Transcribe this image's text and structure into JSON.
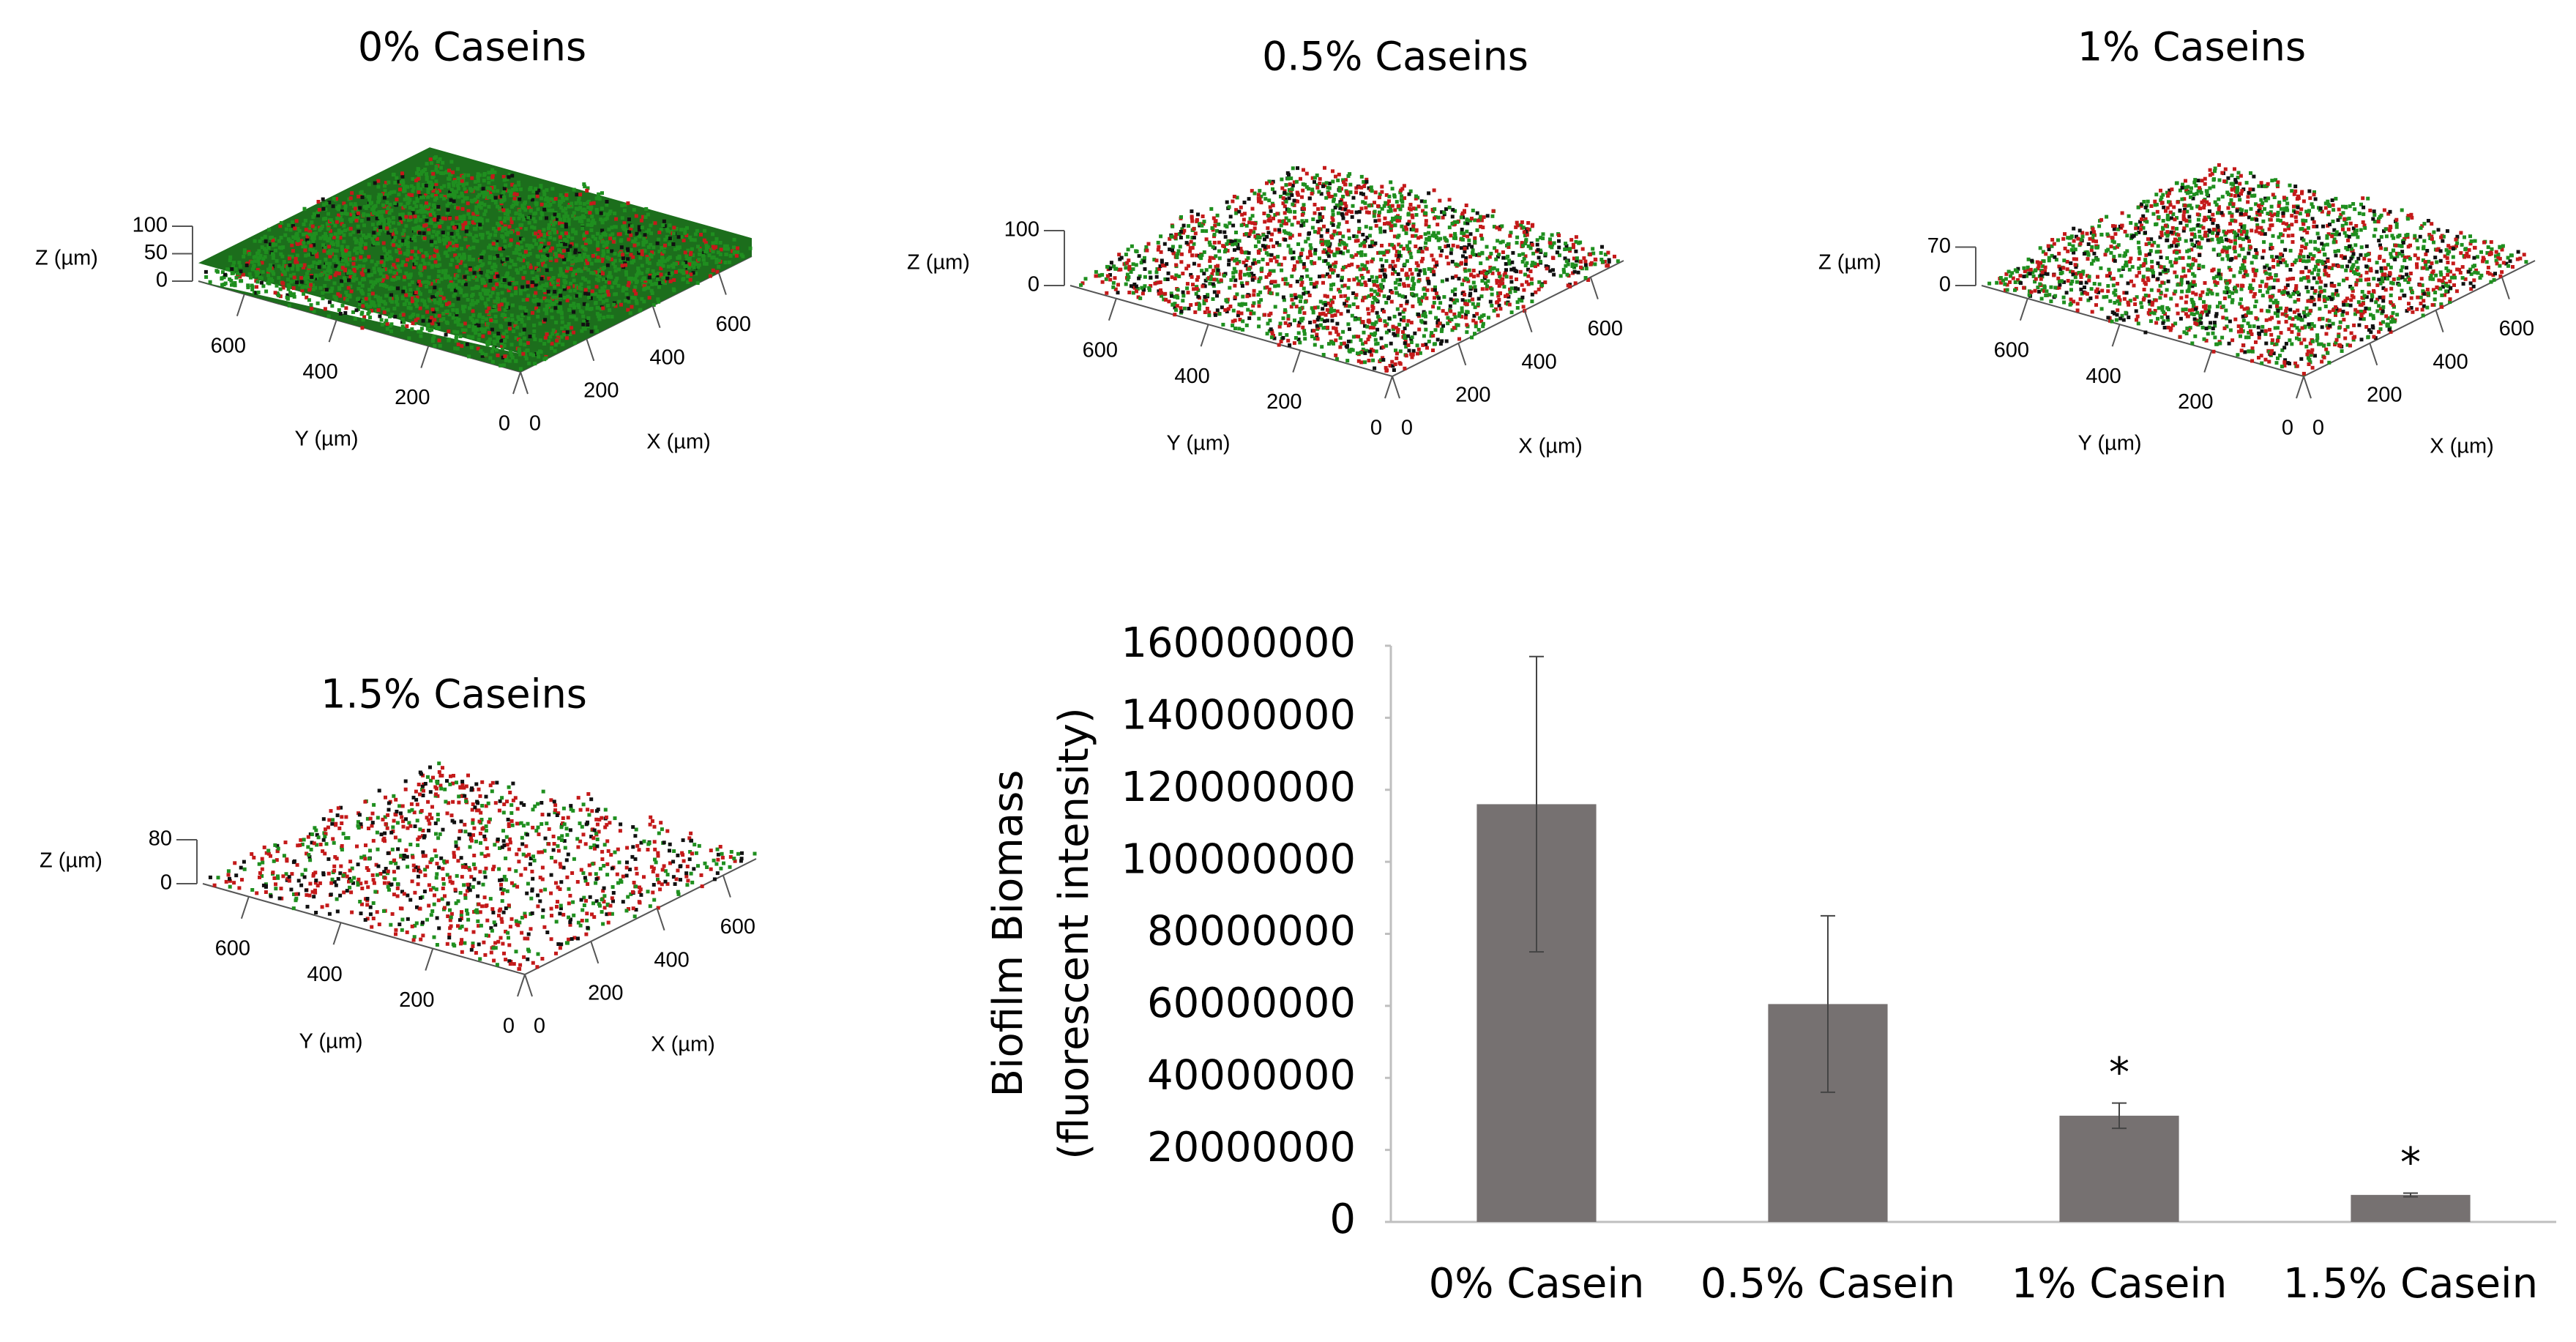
{
  "chart_data": [
    {
      "type": "surface3d",
      "title": "0% Caseins",
      "xlabel": "X (µm)",
      "ylabel": "Y (µm)",
      "zlabel": "Z (µm)",
      "xlim": [
        0,
        700
      ],
      "ylim": [
        0,
        700
      ],
      "zlim": [
        0,
        100
      ],
      "xticks": [
        0,
        200,
        400,
        600
      ],
      "yticks": [
        0,
        200,
        400,
        600
      ],
      "zticks": [
        0,
        50,
        100
      ],
      "colors": [
        "#1f8f1f",
        "#c41a1a",
        "#111111"
      ]
    },
    {
      "type": "surface3d",
      "title": "0.5% Caseins",
      "xlabel": "X (µm)",
      "ylabel": "Y (µm)",
      "zlabel": "Z (µm)",
      "xlim": [
        0,
        700
      ],
      "ylim": [
        0,
        700
      ],
      "zlim": [
        0,
        100
      ],
      "xticks": [
        0,
        200,
        400,
        600
      ],
      "yticks": [
        0,
        200,
        400,
        600
      ],
      "zticks": [
        0,
        100
      ],
      "colors": [
        "#1f8f1f",
        "#c41a1a",
        "#111111"
      ]
    },
    {
      "type": "surface3d",
      "title": "1% Caseins",
      "xlabel": "X (µm)",
      "ylabel": "Y (µm)",
      "zlabel": "Z (µm)",
      "xlim": [
        0,
        700
      ],
      "ylim": [
        0,
        700
      ],
      "zlim": [
        0,
        70
      ],
      "xticks": [
        0,
        200,
        400,
        600
      ],
      "yticks": [
        0,
        200,
        400,
        600
      ],
      "zticks": [
        0,
        70
      ],
      "colors": [
        "#1f8f1f",
        "#c41a1a",
        "#111111"
      ]
    },
    {
      "type": "surface3d",
      "title": "1.5% Caseins",
      "xlabel": "X (µm)",
      "ylabel": "Y (µm)",
      "zlabel": "Z (µm)",
      "xlim": [
        0,
        700
      ],
      "ylim": [
        0,
        700
      ],
      "zlim": [
        0,
        80
      ],
      "xticks": [
        0,
        200,
        400,
        600
      ],
      "yticks": [
        0,
        200,
        400,
        600
      ],
      "zticks": [
        0,
        80
      ],
      "colors": [
        "#1f8f1f",
        "#c41a1a",
        "#111111"
      ]
    },
    {
      "type": "bar",
      "ylabel": [
        "Biofilm Biomass",
        "(fluorescent intensity)"
      ],
      "categories": [
        "0% Casein",
        "0.5% Casein",
        "1% Casein",
        "1.5% Casein"
      ],
      "values": [
        116000000,
        60500000,
        29500000,
        7500000
      ],
      "errors": [
        41000000,
        24500000,
        3500000,
        500000
      ],
      "significance": [
        null,
        null,
        "*",
        "*"
      ],
      "color": "#767171",
      "ylim": [
        0,
        160000000
      ],
      "yticks": [
        0,
        20000000,
        40000000,
        60000000,
        80000000,
        100000000,
        120000000,
        140000000,
        160000000
      ]
    }
  ]
}
